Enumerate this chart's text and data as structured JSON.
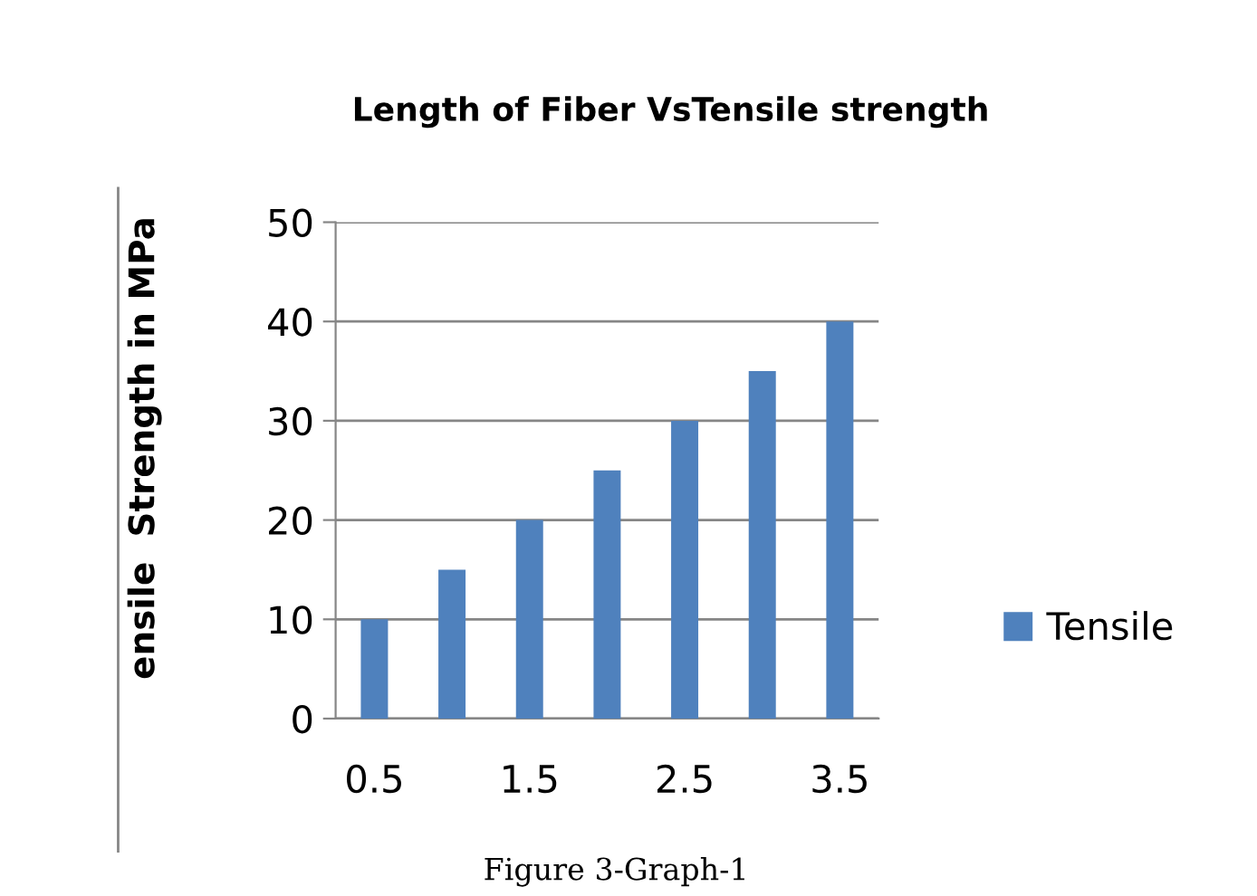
{
  "chart_data": {
    "type": "bar",
    "title": "Length of Fiber VsTensile strength",
    "ylabel": "ensile  Strength in MPa",
    "categories": [
      "0.5",
      null,
      "1.5",
      null,
      "2.5",
      null,
      "3.5"
    ],
    "series": [
      {
        "name": "Tensile",
        "color": "#4f81bd",
        "values": [
          10,
          15,
          20,
          25,
          30,
          35,
          40
        ]
      }
    ],
    "ylim": [
      0,
      50
    ],
    "yticks": [
      0,
      10,
      20,
      30,
      40,
      50
    ],
    "grid": "y",
    "legend": "right",
    "annotations": [
      "Figure 3-Graph-1"
    ]
  }
}
